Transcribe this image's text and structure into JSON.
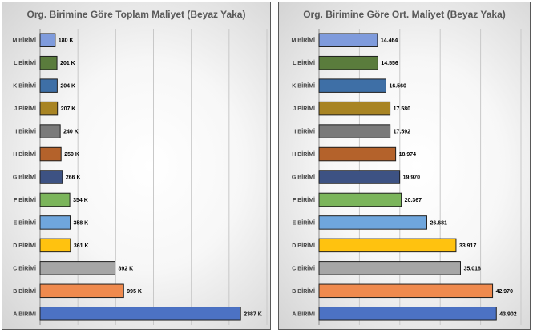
{
  "chart_data": [
    {
      "type": "bar",
      "orientation": "horizontal",
      "title": "Org. Birimine Göre Toplam Maliyet (Beyaz Yaka)",
      "categories": [
        "M BİRİMİ",
        "L BİRİMİ",
        "K BİRİMİ",
        "J BİRİMİ",
        "I BİRİMİ",
        "H BİRİMİ",
        "G BİRİMİ",
        "F BİRİMİ",
        "E BİRİMİ",
        "D BİRİMİ",
        "C BİRİMİ",
        "B BİRİMİ",
        "A BİRİMİ"
      ],
      "values": [
        180,
        201,
        204,
        207,
        240,
        250,
        266,
        354,
        358,
        361,
        892,
        995,
        2387
      ],
      "data_labels": [
        "180 K",
        "201 K",
        "204 K",
        "207 K",
        "240 K",
        "250 K",
        "266 K",
        "354 K",
        "358 K",
        "361 K",
        "892 K",
        "995 K",
        "2387 K"
      ],
      "colors": [
        "#7f9bdc",
        "#5a7c3c",
        "#3e6fa6",
        "#a88423",
        "#7a7a7a",
        "#b4622b",
        "#3d5283",
        "#7bb55b",
        "#6fa6dd",
        "#ffc20f",
        "#a6a6a6",
        "#ef8a4e",
        "#4c72c4"
      ],
      "xlim": [
        0,
        2700
      ],
      "grid": "vertical",
      "legend": "none"
    },
    {
      "type": "bar",
      "orientation": "horizontal",
      "title": "Org. Birimine Göre Ort. Maliyet (Beyaz Yaka)",
      "categories": [
        "M BİRİMİ",
        "L BİRİMİ",
        "K BİRİMİ",
        "J BİRİMİ",
        "I BİRİMİ",
        "H BİRİMİ",
        "G BİRİMİ",
        "F BİRİMİ",
        "E BİRİMİ",
        "D BİRİMİ",
        "C BİRİMİ",
        "B BİRİMİ",
        "A BİRİMİ"
      ],
      "values": [
        14464,
        14556,
        16560,
        17580,
        17592,
        18974,
        19970,
        20367,
        26681,
        33917,
        35018,
        42970,
        43902
      ],
      "data_labels": [
        "14.464",
        "14.556",
        "16.560",
        "17.580",
        "17.592",
        "18.974",
        "19.970",
        "20.367",
        "26.681",
        "33.917",
        "35.018",
        "42.970",
        "43.902"
      ],
      "colors": [
        "#7f9bdc",
        "#5a7c3c",
        "#3e6fa6",
        "#a88423",
        "#7a7a7a",
        "#b4622b",
        "#3d5283",
        "#7bb55b",
        "#6fa6dd",
        "#ffc20f",
        "#a6a6a6",
        "#ef8a4e",
        "#4c72c4"
      ],
      "xlim": [
        0,
        50000
      ],
      "grid": "vertical",
      "legend": "none"
    }
  ]
}
